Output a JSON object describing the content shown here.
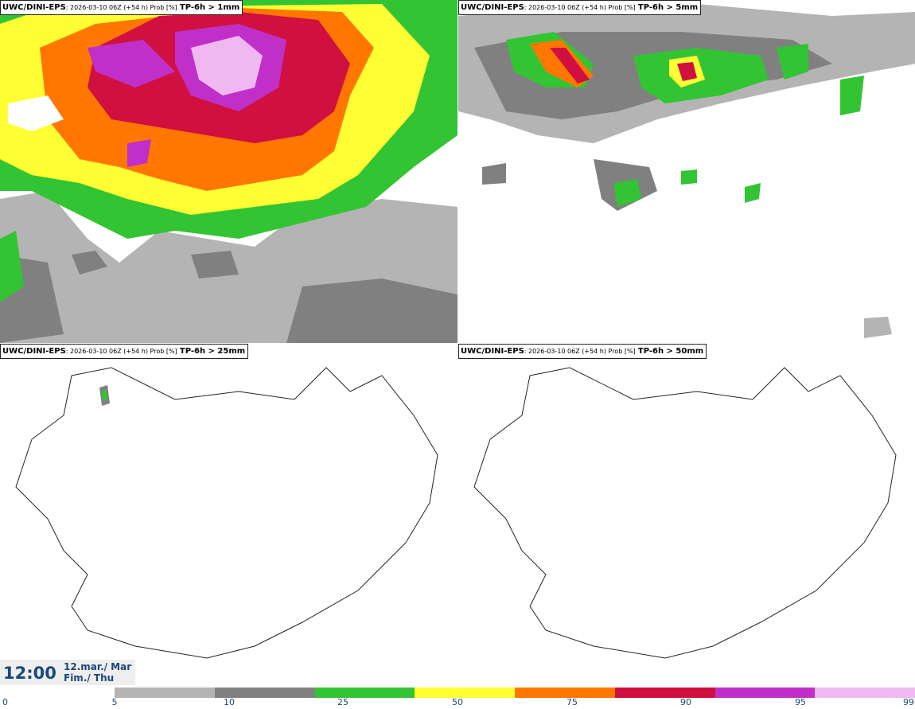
{
  "panels": [
    {
      "model": "UWC/DINI-EPS",
      "meta": ": 2026-03-10 06Z (+54 h) Prob [%]",
      "param": "TP-6h > 1mm"
    },
    {
      "model": "UWC/DINI-EPS",
      "meta": ": 2026-03-10 06Z (+54 h) Prob [%]",
      "param": "TP-6h > 5mm"
    },
    {
      "model": "UWC/DINI-EPS",
      "meta": ": 2026-03-10 06Z (+54 h) Prob [%]",
      "param": "TP-6h > 25mm"
    },
    {
      "model": "UWC/DINI-EPS",
      "meta": ": 2026-03-10 06Z (+54 h) Prob [%]",
      "param": "TP-6h > 50mm"
    }
  ],
  "clock": {
    "time": "12:00",
    "date_line1": "12.mar./ Mar",
    "date_line2": "Fim./ Thu"
  },
  "colorbar": {
    "ticks": [
      "0",
      "5",
      "10",
      "25",
      "50",
      "75",
      "90",
      "95",
      "99"
    ],
    "colors": [
      "#ffffff",
      "#b4b4b4",
      "#808080",
      "#33c433",
      "#ffff33",
      "#ff7700",
      "#d01040",
      "#c030c8",
      "#f0b8f0"
    ]
  }
}
